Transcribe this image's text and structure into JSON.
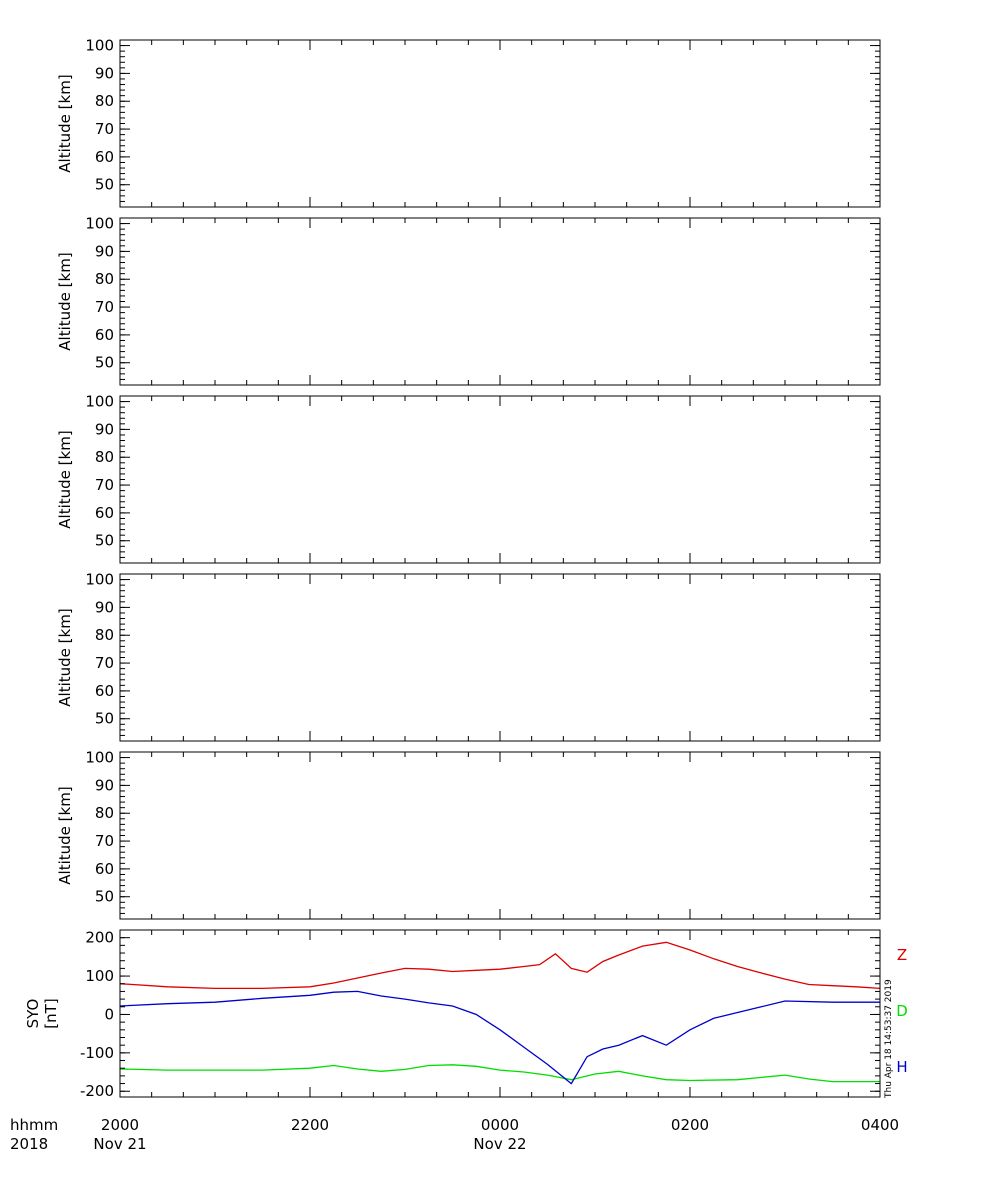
{
  "time_axis": {
    "row1_label": "hhmm",
    "row2_label": "2018",
    "ticks": [
      "2000",
      "2200",
      "0000",
      "0200",
      "0400"
    ],
    "date_labels": [
      {
        "tick": "2000",
        "text": "Nov 21"
      },
      {
        "tick": "0000",
        "text": "Nov 22"
      }
    ]
  },
  "timestamp": "Thu Apr 18 14:53:37 2019",
  "chart_data": [
    {
      "type": "line",
      "panel": 1,
      "ylabel": "Altitude [km]",
      "yticks": [
        50,
        60,
        70,
        80,
        90,
        100
      ],
      "ylim": [
        42,
        102
      ],
      "xlim": [
        "2018-11-21 20:00",
        "2018-11-22 04:00"
      ],
      "series": []
    },
    {
      "type": "line",
      "panel": 2,
      "ylabel": "Altitude [km]",
      "yticks": [
        50,
        60,
        70,
        80,
        90,
        100
      ],
      "ylim": [
        42,
        102
      ],
      "xlim": [
        "2018-11-21 20:00",
        "2018-11-22 04:00"
      ],
      "series": []
    },
    {
      "type": "line",
      "panel": 3,
      "ylabel": "Altitude [km]",
      "yticks": [
        50,
        60,
        70,
        80,
        90,
        100
      ],
      "ylim": [
        42,
        102
      ],
      "xlim": [
        "2018-11-21 20:00",
        "2018-11-22 04:00"
      ],
      "series": []
    },
    {
      "type": "line",
      "panel": 4,
      "ylabel": "Altitude [km]",
      "yticks": [
        50,
        60,
        70,
        80,
        90,
        100
      ],
      "ylim": [
        42,
        102
      ],
      "xlim": [
        "2018-11-21 20:00",
        "2018-11-22 04:00"
      ],
      "series": []
    },
    {
      "type": "line",
      "panel": 5,
      "ylabel": "Altitude [km]",
      "yticks": [
        50,
        60,
        70,
        80,
        90,
        100
      ],
      "ylim": [
        42,
        102
      ],
      "xlim": [
        "2018-11-21 20:00",
        "2018-11-22 04:00"
      ],
      "series": []
    },
    {
      "type": "line",
      "panel": 6,
      "ylabel": "SYO [nT]",
      "yticks": [
        -200,
        -100,
        0,
        100,
        200
      ],
      "ylim": [
        -215,
        220
      ],
      "xlim": [
        "2018-11-21 20:00",
        "2018-11-22 04:00"
      ],
      "series": [
        {
          "name": "Z",
          "color": "#dd0000",
          "x": [
            "2018-11-21 20:00",
            "2018-11-21 20:30",
            "2018-11-21 21:00",
            "2018-11-21 21:30",
            "2018-11-21 22:00",
            "2018-11-21 22:15",
            "2018-11-21 22:30",
            "2018-11-21 22:45",
            "2018-11-21 23:00",
            "2018-11-21 23:15",
            "2018-11-21 23:30",
            "2018-11-21 23:45",
            "2018-11-22 00:00",
            "2018-11-22 00:15",
            "2018-11-22 00:25",
            "2018-11-22 00:35",
            "2018-11-22 00:45",
            "2018-11-22 00:55",
            "2018-11-22 01:05",
            "2018-11-22 01:15",
            "2018-11-22 01:30",
            "2018-11-22 01:45",
            "2018-11-22 02:00",
            "2018-11-22 02:15",
            "2018-11-22 02:30",
            "2018-11-22 02:45",
            "2018-11-22 03:00",
            "2018-11-22 03:15",
            "2018-11-22 03:30",
            "2018-11-22 03:45",
            "2018-11-22 04:00"
          ],
          "y": [
            80,
            72,
            68,
            68,
            72,
            82,
            95,
            108,
            120,
            118,
            112,
            115,
            118,
            125,
            130,
            158,
            120,
            110,
            138,
            155,
            178,
            188,
            168,
            145,
            125,
            108,
            92,
            78,
            75,
            72,
            68
          ]
        },
        {
          "name": "D",
          "color": "#00dd00",
          "x": [
            "2018-11-21 20:00",
            "2018-11-21 20:30",
            "2018-11-21 21:00",
            "2018-11-21 21:30",
            "2018-11-21 22:00",
            "2018-11-21 22:15",
            "2018-11-21 22:30",
            "2018-11-21 22:45",
            "2018-11-21 23:00",
            "2018-11-21 23:15",
            "2018-11-21 23:30",
            "2018-11-21 23:45",
            "2018-11-22 00:00",
            "2018-11-22 00:15",
            "2018-11-22 00:30",
            "2018-11-22 00:45",
            "2018-11-22 01:00",
            "2018-11-22 01:15",
            "2018-11-22 01:30",
            "2018-11-22 01:45",
            "2018-11-22 02:00",
            "2018-11-22 02:30",
            "2018-11-22 03:00",
            "2018-11-22 03:15",
            "2018-11-22 03:30",
            "2018-11-22 04:00"
          ],
          "y": [
            -142,
            -145,
            -145,
            -145,
            -140,
            -133,
            -142,
            -148,
            -143,
            -133,
            -131,
            -135,
            -145,
            -150,
            -158,
            -170,
            -155,
            -148,
            -160,
            -170,
            -172,
            -170,
            -158,
            -168,
            -175,
            -175
          ]
        },
        {
          "name": "H",
          "color": "#0000cc",
          "x": [
            "2018-11-21 20:00",
            "2018-11-21 20:30",
            "2018-11-21 21:00",
            "2018-11-21 21:30",
            "2018-11-21 22:00",
            "2018-11-21 22:15",
            "2018-11-21 22:30",
            "2018-11-21 22:45",
            "2018-11-21 23:00",
            "2018-11-21 23:15",
            "2018-11-21 23:30",
            "2018-11-21 23:45",
            "2018-11-22 00:00",
            "2018-11-22 00:15",
            "2018-11-22 00:30",
            "2018-11-22 00:45",
            "2018-11-22 00:55",
            "2018-11-22 01:05",
            "2018-11-22 01:15",
            "2018-11-22 01:30",
            "2018-11-22 01:45",
            "2018-11-22 02:00",
            "2018-11-22 02:15",
            "2018-11-22 02:30",
            "2018-11-22 02:45",
            "2018-11-22 03:00",
            "2018-11-22 03:30",
            "2018-11-22 04:00"
          ],
          "y": [
            22,
            28,
            32,
            42,
            50,
            58,
            60,
            48,
            40,
            30,
            22,
            0,
            -40,
            -85,
            -130,
            -180,
            -110,
            -90,
            -80,
            -55,
            -80,
            -40,
            -10,
            5,
            20,
            35,
            32,
            32
          ]
        }
      ]
    }
  ]
}
